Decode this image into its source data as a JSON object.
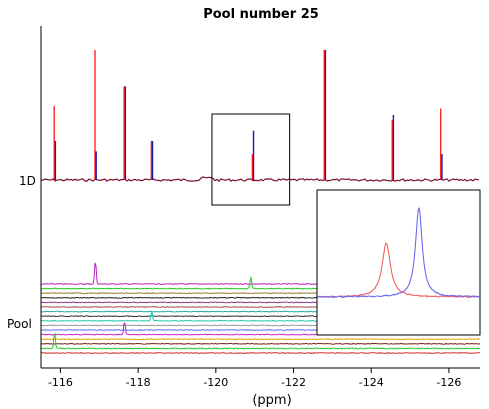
{
  "chart_data": {
    "type": "line",
    "title": "Pool number 25",
    "xlabel": "(ppm)",
    "ylabel": "",
    "xlim": [
      -115.5,
      -126.8
    ],
    "x_reversed": true,
    "xticks": [
      -116,
      -118,
      -120,
      -122,
      -124,
      -126
    ],
    "xtick_labels": [
      "-116",
      "-118",
      "-120",
      "-122",
      "-124",
      "-126"
    ],
    "row_labels": [
      "1D",
      "Pool"
    ],
    "grid": false,
    "colors": {
      "red": "#ff0000",
      "blue": "#1a1aaa",
      "inset_red": "#f26060",
      "inset_blue": "#6b6bf2"
    },
    "top_spectrum": {
      "peaks_red": [
        {
          "x": -115.85,
          "h": 0.57
        },
        {
          "x": -116.9,
          "h": 1.0
        },
        {
          "x": -117.65,
          "h": 0.72
        },
        {
          "x": -118.35,
          "h": 0.3
        },
        {
          "x": -120.95,
          "h": 0.2
        },
        {
          "x": -122.8,
          "h": 1.0
        },
        {
          "x": -124.55,
          "h": 0.46
        },
        {
          "x": -125.8,
          "h": 0.55
        }
      ],
      "peaks_blue": [
        {
          "x": -115.85,
          "h": 0.3
        },
        {
          "x": -116.9,
          "h": 0.22
        },
        {
          "x": -117.65,
          "h": 0.72
        },
        {
          "x": -118.35,
          "h": 0.3
        },
        {
          "x": -120.95,
          "h": 0.38
        },
        {
          "x": -122.8,
          "h": 1.0
        },
        {
          "x": -124.55,
          "h": 0.5
        },
        {
          "x": -125.8,
          "h": 0.2
        }
      ]
    },
    "pool_traces": [
      {
        "color": "#bb22bb",
        "peaks": [
          {
            "x": -116.9,
            "h": 24
          }
        ]
      },
      {
        "color": "#22cc22",
        "peaks": [
          {
            "x": -120.9,
            "h": 12
          }
        ]
      },
      {
        "color": "#9b7a3b",
        "peaks": []
      },
      {
        "color": "#222222",
        "peaks": []
      },
      {
        "color": "#8a3b8a",
        "peaks": []
      },
      {
        "color": "#a05050",
        "peaks": []
      },
      {
        "color": "#22aaaa",
        "peaks": []
      },
      {
        "color": "#333333",
        "peaks": []
      },
      {
        "color": "#22ccaa",
        "peaks": [
          {
            "x": -118.35,
            "h": 10
          }
        ]
      },
      {
        "color": "#999999",
        "peaks": []
      },
      {
        "color": "#6b6bf2",
        "peaks": []
      },
      {
        "color": "#cc22cc",
        "peaks": [
          {
            "x": -117.65,
            "h": 14
          }
        ]
      },
      {
        "color": "#e6a000",
        "peaks": []
      },
      {
        "color": "#7a2222",
        "peaks": []
      },
      {
        "color": "#22cc22",
        "peaks": [
          {
            "x": -115.85,
            "h": 16
          }
        ]
      },
      {
        "color": "#cc3333",
        "peaks": []
      }
    ],
    "zoom_box": {
      "x": [
        -119.9,
        -121.9
      ]
    },
    "inset": {
      "xlim": [
        -119.9,
        -121.9
      ],
      "red_peak": {
        "x": -120.75,
        "h": 0.6
      },
      "blue_peak": {
        "x": -121.15,
        "h": 1.0
      }
    }
  }
}
